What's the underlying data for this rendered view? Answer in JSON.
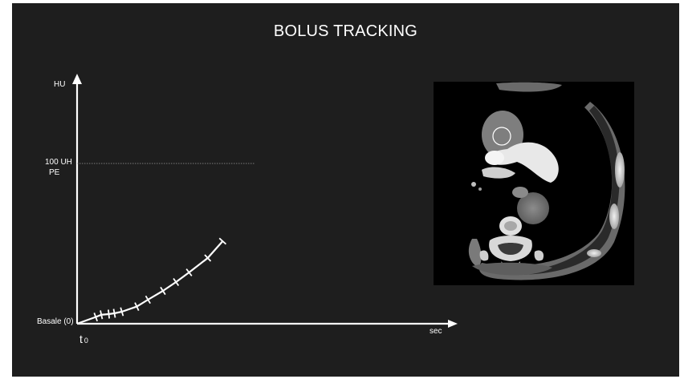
{
  "title": "BOLUS TRACKING",
  "axes": {
    "y_label": "HU",
    "x_label": "sec",
    "threshold_label": "100 UH",
    "threshold_sublabel": "PE",
    "baseline_label": "Basale (0)",
    "origin_label": "t",
    "origin_subscript": "0"
  },
  "curve": {
    "threshold_value": 100,
    "y_max": 150,
    "x_max": 100,
    "points": [
      [
        0,
        0
      ],
      [
        5,
        4.2
      ],
      [
        6.5,
        5.6
      ],
      [
        8.5,
        6
      ],
      [
        10,
        6.5
      ],
      [
        12,
        7.5
      ],
      [
        16,
        10.7
      ],
      [
        19,
        15
      ],
      [
        23,
        20.5
      ],
      [
        26.5,
        26
      ],
      [
        30,
        32
      ],
      [
        35,
        41
      ],
      [
        39,
        51.5
      ]
    ],
    "tick_indices": [
      1,
      2,
      3,
      4,
      5,
      6,
      7,
      8,
      9,
      10,
      11,
      12
    ]
  },
  "colors": {
    "background": "#1e1e1e",
    "foreground": "#ffffff",
    "threshold_line": "#9a9a9a"
  }
}
